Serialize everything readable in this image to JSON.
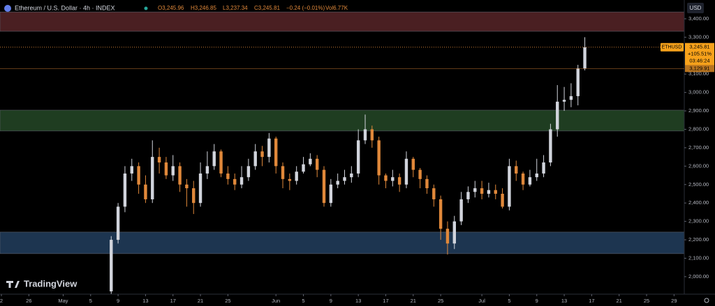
{
  "chart_data": {
    "type": "candlestick",
    "title": "Ethereum / U.S. Dollar · 4h · INDEX",
    "ohlc_bar": {
      "open": "O3,245.96",
      "high": "H3,246.85",
      "low": "L3,237.34",
      "close": "C3,245.81",
      "change": "−0.24 (−0.01%)",
      "volume": "Vol6.77K"
    },
    "currency": "USD",
    "symbol": "ETHUSD",
    "last_price": 3245.81,
    "last_price_label": "3,245.81",
    "change_pct": "+105.51%",
    "countdown": "03:46:24",
    "reference_price": 3129.91,
    "reference_price_label": "3,129.91",
    "brand": "TradingView",
    "up_color": "#d1d4dc",
    "down_color": "#e0883a",
    "zones": [
      {
        "from": 3332,
        "to": 3437,
        "color": "#4a1f22"
      },
      {
        "from": 2791,
        "to": 2904,
        "color": "#1f3d21"
      },
      {
        "from": 2125,
        "to": 2242,
        "color": "#1d3550"
      }
    ],
    "categories": [
      "2",
      null,
      null,
      null,
      "26",
      null,
      null,
      null,
      null,
      "May",
      null,
      null,
      null,
      "5",
      null,
      null,
      null,
      "9",
      null,
      null,
      null,
      "13",
      null,
      null,
      null,
      "17",
      null,
      null,
      null,
      "21",
      null,
      null,
      null,
      "25",
      null,
      null,
      null,
      null,
      null,
      null,
      "Jun",
      null,
      null,
      null,
      "5",
      null,
      null,
      null,
      "9",
      null,
      null,
      null,
      "13",
      null,
      null,
      null,
      "17",
      null,
      null,
      null,
      "21",
      null,
      null,
      null,
      "25",
      null,
      null,
      null,
      null,
      null,
      "Jul",
      null,
      null,
      null,
      "5",
      null,
      null,
      null,
      "9",
      null,
      null,
      null,
      "13",
      null,
      null,
      null,
      "17",
      null,
      null,
      null,
      "21",
      null,
      null,
      null,
      "25",
      null,
      null,
      null,
      "29"
    ],
    "open": [
      null,
      null,
      null,
      null,
      null,
      null,
      null,
      null,
      null,
      null,
      null,
      null,
      null,
      null,
      null,
      null,
      1920,
      2200,
      2380,
      2560,
      2600,
      2500,
      2420,
      2650,
      2620,
      2550,
      2600,
      2500,
      2480,
      2400,
      2560,
      2600,
      2680,
      2560,
      2530,
      2500,
      2540,
      2600,
      2680,
      2650,
      2750,
      2600,
      2530,
      2520,
      2570,
      2610,
      2640,
      2580,
      2400,
      2500,
      2520,
      2540,
      2560,
      2740,
      2800,
      2740,
      2550,
      2520,
      2540,
      2500,
      2640,
      2580,
      2530,
      2480,
      2420,
      2260,
      2180,
      2300,
      2420,
      2460,
      2480,
      2450,
      2470,
      2450,
      2380,
      2600,
      2560,
      2500,
      2540,
      2560,
      2620,
      2800,
      2950,
      2960,
      2980,
      3130,
      null,
      null,
      null,
      null,
      null,
      null,
      null,
      null,
      null,
      null,
      null,
      null,
      null
    ],
    "high": [
      null,
      null,
      null,
      null,
      null,
      null,
      null,
      null,
      null,
      null,
      null,
      null,
      null,
      null,
      null,
      null,
      2220,
      2400,
      2600,
      2640,
      2620,
      2550,
      2740,
      2700,
      2650,
      2660,
      2620,
      2530,
      2520,
      2620,
      2680,
      2720,
      2690,
      2600,
      2560,
      2600,
      2640,
      2720,
      2710,
      2780,
      2760,
      2620,
      2560,
      2600,
      2650,
      2670,
      2660,
      2600,
      2530,
      2560,
      2580,
      2600,
      2800,
      2880,
      2820,
      2760,
      2560,
      2580,
      2560,
      2680,
      2650,
      2590,
      2550,
      2500,
      2440,
      2300,
      2330,
      2460,
      2490,
      2520,
      2520,
      2510,
      2500,
      2480,
      2640,
      2630,
      2570,
      2580,
      2640,
      2660,
      2830,
      3040,
      3030,
      3050,
      3150,
      3300,
      null,
      null,
      null,
      null,
      null,
      null,
      null,
      null,
      null,
      null,
      null,
      null,
      null
    ],
    "low": [
      null,
      null,
      null,
      null,
      null,
      null,
      null,
      null,
      null,
      null,
      null,
      null,
      null,
      null,
      null,
      null,
      1905,
      2180,
      2350,
      2520,
      2450,
      2400,
      2400,
      2560,
      2530,
      2520,
      2460,
      2380,
      2340,
      2380,
      2530,
      2580,
      2540,
      2500,
      2470,
      2480,
      2520,
      2580,
      2600,
      2620,
      2560,
      2480,
      2470,
      2500,
      2560,
      2600,
      2540,
      2380,
      2380,
      2480,
      2500,
      2510,
      2540,
      2720,
      2700,
      2500,
      2480,
      2490,
      2460,
      2480,
      2540,
      2480,
      2450,
      2380,
      2200,
      2120,
      2150,
      2280,
      2400,
      2430,
      2420,
      2430,
      2420,
      2370,
      2360,
      2520,
      2470,
      2490,
      2520,
      2540,
      2600,
      2760,
      2900,
      2920,
      2930,
      3120,
      null,
      null,
      null,
      null,
      null,
      null,
      null,
      null,
      null,
      null,
      null,
      null,
      null
    ],
    "close": [
      null,
      null,
      null,
      null,
      null,
      null,
      null,
      null,
      null,
      null,
      null,
      null,
      null,
      null,
      null,
      null,
      2200,
      2380,
      2560,
      2600,
      2500,
      2420,
      2650,
      2620,
      2550,
      2600,
      2500,
      2480,
      2400,
      2560,
      2600,
      2680,
      2560,
      2530,
      2500,
      2540,
      2600,
      2680,
      2650,
      2750,
      2600,
      2530,
      2520,
      2570,
      2610,
      2640,
      2580,
      2400,
      2500,
      2520,
      2540,
      2560,
      2740,
      2800,
      2740,
      2550,
      2520,
      2540,
      2500,
      2640,
      2580,
      2530,
      2480,
      2420,
      2260,
      2180,
      2300,
      2420,
      2460,
      2480,
      2450,
      2470,
      2450,
      2380,
      2600,
      2560,
      2500,
      2540,
      2560,
      2620,
      2800,
      2950,
      2960,
      2980,
      3130,
      3245.81,
      null,
      null,
      null,
      null,
      null,
      null,
      null,
      null,
      null,
      null,
      null,
      null,
      null
    ],
    "ylim": [
      1905,
      3502
    ],
    "yticks": [
      {
        "value": 2000,
        "label": "2,000.00"
      },
      {
        "value": 2100,
        "label": "2,100.00"
      },
      {
        "value": 2200,
        "label": "2,200.00"
      },
      {
        "value": 2300,
        "label": "2,300.00"
      },
      {
        "value": 2400,
        "label": "2,400.00"
      },
      {
        "value": 2500,
        "label": "2,500.00"
      },
      {
        "value": 2600,
        "label": "2,600.00"
      },
      {
        "value": 2700,
        "label": "2,700.00"
      },
      {
        "value": 2800,
        "label": "2,800.00"
      },
      {
        "value": 2900,
        "label": "2,900.00"
      },
      {
        "value": 3000,
        "label": "3,000.00"
      },
      {
        "value": 3100,
        "label": "3,100.00"
      },
      {
        "value": 3300,
        "label": "3,300.00"
      },
      {
        "value": 3400,
        "label": "3,400.00"
      }
    ]
  }
}
